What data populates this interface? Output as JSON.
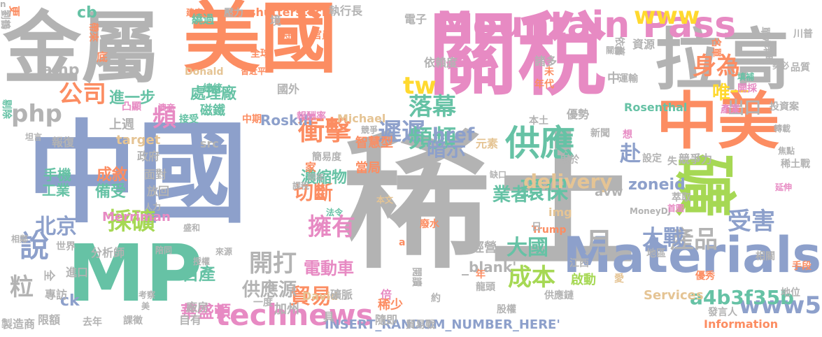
{
  "cloud": {
    "palette": {
      "gray": "#b3b3b3",
      "orange": "#fc8d62",
      "blue": "#8da0cb",
      "pink": "#e78ac3",
      "green": "#a6d854",
      "teal": "#66c2a5",
      "yellow": "#e5c494",
      "gold": "#ffd92f"
    },
    "words": [
      {
        "text": "稀土",
        "color": "gray"
      },
      {
        "text": "中國",
        "color": "blue"
      },
      {
        "text": "關稅",
        "color": "pink"
      },
      {
        "text": "美國",
        "color": "orange"
      },
      {
        "text": "金屬",
        "color": "gray"
      },
      {
        "text": "MP",
        "color": "teal"
      },
      {
        "text": "拉高",
        "color": "gray"
      },
      {
        "text": "中美",
        "color": "orange"
      },
      {
        "text": "礦",
        "color": "green"
      },
      {
        "text": "Materials",
        "color": "blue"
      },
      {
        "text": "Mountain Pass",
        "color": "pink"
      },
      {
        "text": "供應",
        "color": "teal"
      },
      {
        "text": "technews",
        "color": "pink"
      },
      {
        "text": "www5",
        "color": "blue"
      },
      {
        "text": "衝擊",
        "color": "orange"
      },
      {
        "text": "遲遲",
        "color": "blue"
      },
      {
        "text": "環保",
        "color": "teal"
      },
      {
        "text": "delivery",
        "color": "yellow"
      },
      {
        "text": "產品",
        "color": "gray"
      },
      {
        "text": "公司",
        "color": "orange"
      },
      {
        "text": "www",
        "color": "gold"
      },
      {
        "text": "身為",
        "color": "orange"
      },
      {
        "text": "php",
        "color": "gray"
      },
      {
        "text": "頻頻",
        "color": "teal"
      },
      {
        "text": "採礦",
        "color": "green"
      },
      {
        "text": "北京",
        "color": "blue"
      },
      {
        "text": "擁有",
        "color": "pink"
      },
      {
        "text": "說",
        "color": "blue"
      },
      {
        "text": "開打",
        "color": "gray"
      },
      {
        "text": "成本",
        "color": "green"
      },
      {
        "text": "a4b3f35b",
        "color": "teal"
      },
      {
        "text": "貿易",
        "color": "orange"
      },
      {
        "text": "大戰",
        "color": "blue"
      },
      {
        "text": "大國",
        "color": "teal"
      },
      {
        "text": "受害",
        "color": "blue"
      },
      {
        "text": "供應源",
        "color": "gray"
      },
      {
        "text": "月",
        "color": "gray"
      },
      {
        "text": "tw",
        "color": "gold"
      },
      {
        "text": "落幕",
        "color": "teal"
      },
      {
        "text": "切斷",
        "color": "orange"
      },
      {
        "text": "暗示",
        "color": "blue"
      },
      {
        "text": "業者",
        "color": "teal"
      },
      {
        "text": "赴",
        "color": "blue"
      },
      {
        "text": "頻",
        "color": "pink"
      },
      {
        "text": "出口",
        "color": "gray"
      },
      {
        "text": "唯一",
        "color": "gold"
      },
      {
        "text": "粒",
        "color": "gray"
      },
      {
        "text": "href",
        "color": "blue"
      },
      {
        "text": "自產",
        "color": "teal"
      },
      {
        "text": "華盛頓",
        "color": "pink"
      },
      {
        "text": "電動車",
        "color": "pink"
      },
      {
        "text": "進一步",
        "color": "teal"
      },
      {
        "text": "處理廠",
        "color": "teal"
      },
      {
        "text": "濃縮物",
        "color": "teal"
      },
      {
        "text": "成敘",
        "color": "orange"
      },
      {
        "text": "備受",
        "color": "teal"
      },
      {
        "text": "手機",
        "color": "teal"
      },
      {
        "text": "工業",
        "color": "teal"
      },
      {
        "text": "amp",
        "color": "gray"
      },
      {
        "text": "ck",
        "color": "blue"
      },
      {
        "text": "zoneid",
        "color": "blue"
      },
      {
        "text": "avw",
        "color": "gray"
      },
      {
        "text": "img",
        "color": "yellow"
      },
      {
        "text": "src",
        "color": "gray"
      },
      {
        "text": "target",
        "color": "yellow"
      },
      {
        "text": "Roskill",
        "color": "blue"
      },
      {
        "text": "Rosenthal",
        "color": "teal"
      },
      {
        "text": "Merriman",
        "color": "pink"
      },
      {
        "text": "Michael",
        "color": "yellow"
      },
      {
        "text": "Services",
        "color": "yellow"
      },
      {
        "text": "Information",
        "color": "orange"
      },
      {
        "text": "INSERT_RANDOM_NUMBER_HERE'",
        "color": "blue"
      },
      {
        "text": "_blank'",
        "color": "gray"
      },
      {
        "text": "MoneyDJ",
        "color": "gray"
      },
      {
        "text": "David",
        "color": "yellow"
      },
      {
        "text": "shutterstock",
        "color": "orange"
      },
      {
        "text": "Donald",
        "color": "yellow"
      },
      {
        "text": "Trump",
        "color": "orange"
      },
      {
        "text": "執行長",
        "color": "gray"
      },
      {
        "text": "電子",
        "color": "gray"
      },
      {
        "text": "單方",
        "color": "gray"
      },
      {
        "text": "策略",
        "color": "gray"
      },
      {
        "text": "全球",
        "color": "orange"
      },
      {
        "text": "官員",
        "color": "orange"
      },
      {
        "text": "建廠",
        "color": "orange"
      },
      {
        "text": "壓力",
        "color": "gray"
      },
      {
        "text": "時",
        "color": "orange"
      },
      {
        "text": "境",
        "color": "gray"
      },
      {
        "text": "繞過",
        "color": "teal"
      },
      {
        "text": "cb",
        "color": "teal"
      },
      {
        "text": "更",
        "color": "orange"
      },
      {
        "text": "劉鶴",
        "color": "gray"
      },
      {
        "text": "帶來",
        "color": "orange"
      },
      {
        "text": "底",
        "color": "orange"
      },
      {
        "text": "習近平",
        "color": "orange"
      },
      {
        "text": "總統",
        "color": "teal"
      },
      {
        "text": "凸顯",
        "color": "pink"
      },
      {
        "text": "澳商",
        "color": "pink"
      },
      {
        "text": "剔除",
        "color": "teal"
      },
      {
        "text": "上週",
        "color": "gray"
      },
      {
        "text": "磁鐵",
        "color": "teal"
      },
      {
        "text": "接受",
        "color": "teal"
      },
      {
        "text": "中期",
        "color": "orange"
      },
      {
        "text": "報酬率",
        "color": "pink"
      },
      {
        "text": "國外",
        "color": "gray"
      },
      {
        "text": "依賴度",
        "color": "gray"
      },
      {
        "text": "資源",
        "color": "gray"
      },
      {
        "text": "依舊",
        "color": "gray"
      },
      {
        "text": "諸多",
        "color": "gray"
      },
      {
        "text": "名單",
        "color": "orange"
      },
      {
        "text": "川普",
        "color": "gray"
      },
      {
        "text": "品質",
        "color": "gray"
      },
      {
        "text": "關鍵",
        "color": "gray"
      },
      {
        "text": "勢必",
        "color": "gray"
      },
      {
        "text": "填補",
        "color": "teal"
      },
      {
        "text": "開採",
        "color": "pink"
      },
      {
        "text": "運輸",
        "color": "gray"
      },
      {
        "text": "未",
        "color": "orange"
      },
      {
        "text": "年代",
        "color": "orange"
      },
      {
        "text": "本土",
        "color": "gray"
      },
      {
        "text": "優勢",
        "color": "gray"
      },
      {
        "text": "產業",
        "color": "pink"
      },
      {
        "text": "投資案",
        "color": "gray"
      },
      {
        "text": "轉載",
        "color": "gray"
      },
      {
        "text": "新聞",
        "color": "gray"
      },
      {
        "text": "想",
        "color": "pink"
      },
      {
        "text": "焦點",
        "color": "gray"
      },
      {
        "text": "稀土戰",
        "color": "gray"
      },
      {
        "text": "延伸",
        "color": "pink"
      },
      {
        "text": "首圖",
        "color": "pink"
      },
      {
        "text": "萃取",
        "color": "gray"
      },
      {
        "text": "失",
        "color": "gray"
      },
      {
        "text": "競爭力",
        "color": "gray"
      },
      {
        "text": "設定",
        "color": "gray"
      },
      {
        "text": "用於",
        "color": "gray"
      },
      {
        "text": "元素",
        "color": "yellow"
      },
      {
        "text": "智慧型",
        "color": "orange"
      },
      {
        "text": "簡易度",
        "color": "gray"
      },
      {
        "text": "家",
        "color": "orange"
      },
      {
        "text": "當局",
        "color": "orange"
      },
      {
        "text": "缺口",
        "color": "gray"
      },
      {
        "text": "同年",
        "color": "gray"
      },
      {
        "text": "課稅",
        "color": "gray"
      },
      {
        "text": "法令",
        "color": "teal"
      },
      {
        "text": "本文",
        "color": "yellow"
      },
      {
        "text": "廢水",
        "color": "orange"
      },
      {
        "text": "日",
        "color": "gray"
      },
      {
        "text": "經營",
        "color": "gray"
      },
      {
        "text": "a",
        "color": "orange"
      },
      {
        "text": "年",
        "color": "orange"
      },
      {
        "text": "江西",
        "color": "gray"
      },
      {
        "text": "地區",
        "color": "gray"
      },
      {
        "text": "相關",
        "color": "gray"
      },
      {
        "text": "手段",
        "color": "orange"
      },
      {
        "text": "啟動",
        "color": "green"
      },
      {
        "text": "龍頭",
        "color": "gray"
      },
      {
        "text": "閱讀",
        "color": "gray"
      },
      {
        "text": "倍",
        "color": "pink"
      },
      {
        "text": "稀少",
        "color": "orange"
      },
      {
        "text": "礦脈",
        "color": "gray"
      },
      {
        "text": "隨即",
        "color": "gray"
      },
      {
        "text": "貿易戰",
        "color": "gray"
      },
      {
        "text": "約",
        "color": "gray"
      },
      {
        "text": "股權",
        "color": "gray"
      },
      {
        "text": "供應鏈",
        "color": "gray"
      },
      {
        "text": "愛",
        "color": "yellow"
      },
      {
        "text": "優秀",
        "color": "orange"
      },
      {
        "text": "地位",
        "color": "gray"
      },
      {
        "text": "發言人",
        "color": "gray"
      },
      {
        "text": "加州",
        "color": "gray"
      },
      {
        "text": "一度",
        "color": "gray"
      },
      {
        "text": "具",
        "color": "gray"
      },
      {
        "text": "廠房",
        "color": "gray"
      },
      {
        "text": "自有",
        "color": "gray"
      },
      {
        "text": "課徵",
        "color": "gray"
      },
      {
        "text": "限額",
        "color": "gray"
      },
      {
        "text": "製造商",
        "color": "gray"
      },
      {
        "text": "去年",
        "color": "gray"
      },
      {
        "text": "考察",
        "color": "gray"
      },
      {
        "text": "美",
        "color": "gray"
      },
      {
        "text": "全",
        "color": "gray"
      },
      {
        "text": "專訪",
        "color": "gray"
      },
      {
        "text": "進口",
        "color": "gray"
      },
      {
        "text": "分析師",
        "color": "gray"
      },
      {
        "text": "世界",
        "color": "gray"
      },
      {
        "text": "相鄰",
        "color": "gray"
      },
      {
        "text": "授權",
        "color": "gray"
      },
      {
        "text": "來源",
        "color": "gray"
      },
      {
        "text": "陪同",
        "color": "gray"
      },
      {
        "text": "盛和",
        "color": "gray"
      },
      {
        "text": "人力",
        "color": "gray"
      },
      {
        "text": "放回",
        "color": "gray"
      },
      {
        "text": "面對",
        "color": "gray"
      },
      {
        "text": "政府",
        "color": "gray"
      },
      {
        "text": "報復",
        "color": "gray"
      },
      {
        "text": "坦言",
        "color": "gray"
      },
      {
        "text": "競爭",
        "color": "gray"
      },
      {
        "text": "中",
        "color": "gray"
      },
      {
        "text": "n",
        "color": "gray"
      }
    ]
  }
}
